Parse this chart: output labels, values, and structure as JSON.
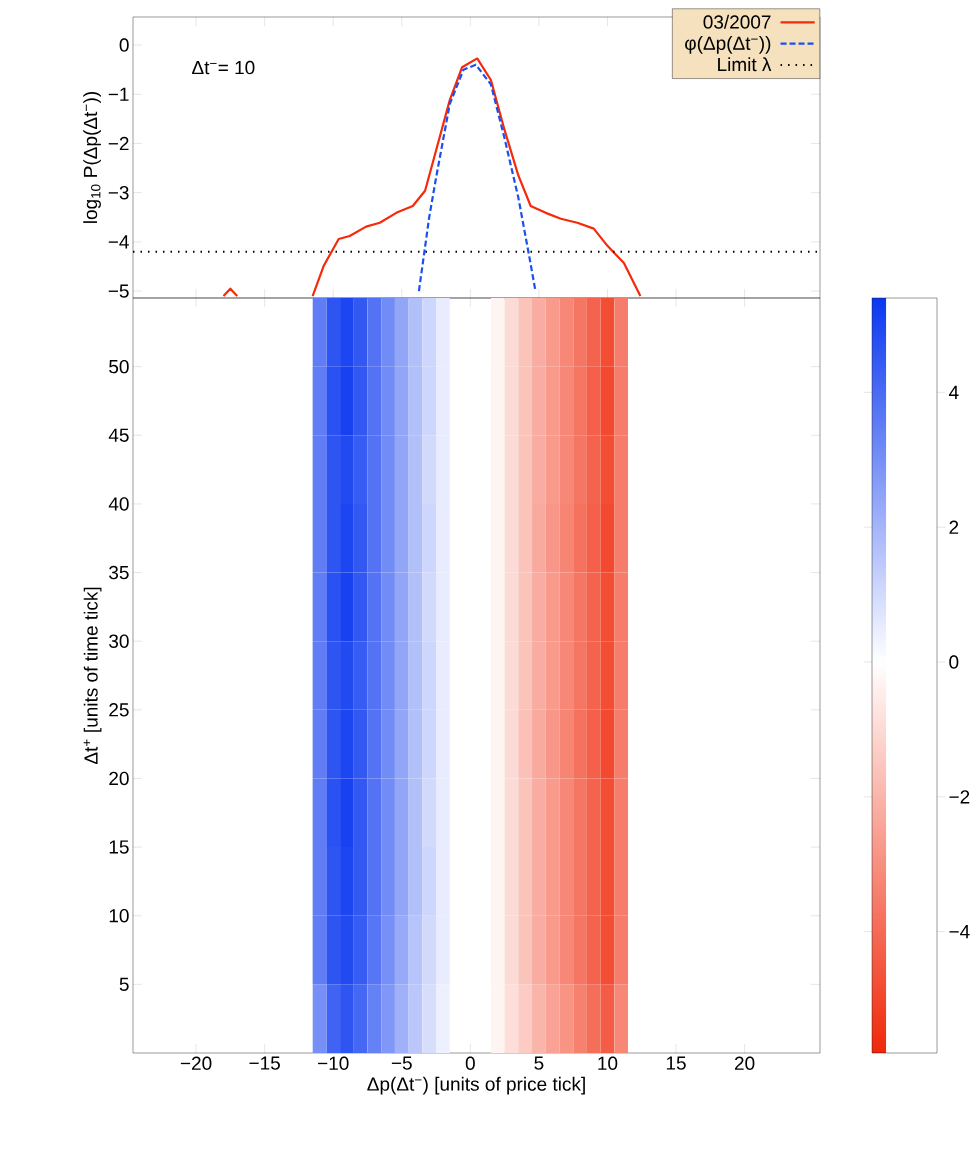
{
  "chart_data": [
    {
      "type": "line",
      "ylabel": "log$_{10}$ P(Δp(Δt$^{−}$))",
      "annotations": [
        "Δt$^{−}$= 10"
      ],
      "xlim": [
        -24.6,
        25.5
      ],
      "ylim": [
        -5.14,
        0.57
      ],
      "xticks": [
        {
          "value": -20,
          "label": null
        },
        {
          "value": -15,
          "label": null
        },
        {
          "value": -10,
          "label": null
        },
        {
          "value": -5,
          "label": null
        },
        {
          "value": 0,
          "label": null
        },
        {
          "value": 5,
          "label": null
        },
        {
          "value": 10,
          "label": null
        },
        {
          "value": 15,
          "label": null
        },
        {
          "value": 20,
          "label": null
        }
      ],
      "yticks": [
        {
          "value": -5,
          "label": "−5"
        },
        {
          "value": -4,
          "label": "−4"
        },
        {
          "value": -3,
          "label": "−3"
        },
        {
          "value": -2,
          "label": "−2"
        },
        {
          "value": -1,
          "label": "−1"
        },
        {
          "value": 0,
          "label": "0"
        }
      ],
      "tick_labels": "y",
      "legend": "top right",
      "series": [
        {
          "name": "03/2007",
          "color": "#f52a0a",
          "line_style": "solid",
          "x": [
            -18.0,
            -17.5,
            -17.0,
            -14,
            -11.5,
            -10.7,
            -9.6,
            -8.8,
            -7.6,
            -6.6,
            -5.4,
            -4.2,
            -3.3,
            -2.4,
            -1.5,
            -0.6,
            0.5,
            1.5,
            2.5,
            3.5,
            4.4,
            5.5,
            6.6,
            7.8,
            9.0,
            10.0,
            11.2,
            12.4
          ],
          "values": [
            -5.1,
            -4.95,
            -5.1,
            null,
            -5.1,
            -4.49,
            -3.94,
            -3.88,
            -3.69,
            -3.61,
            -3.41,
            -3.27,
            -2.96,
            -2.04,
            -1.12,
            -0.45,
            -0.27,
            -0.71,
            -1.73,
            -2.65,
            -3.27,
            -3.41,
            -3.53,
            -3.61,
            -3.73,
            -4.08,
            -4.43,
            -5.1
          ]
        },
        {
          "name": "φ(Δp(Δt$^{−}$))",
          "color": "#1a4ff0",
          "line_style": "dashed",
          "x": [
            -3.75,
            -3.0,
            -2.5,
            -1.5,
            -0.5,
            0.4,
            1.5,
            2.5,
            3.5,
            4.3,
            4.75
          ],
          "values": [
            -5.0,
            -3.5,
            -2.7,
            -1.2,
            -0.5,
            -0.4,
            -0.8,
            -1.9,
            -3.1,
            -4.3,
            -5.0
          ]
        }
      ],
      "ref_lines": [
        {
          "axis": "y",
          "value": -4.2,
          "label": "Limit λ",
          "color": "#000000",
          "line_style": "dotted"
        }
      ]
    },
    {
      "type": "heatmap",
      "xlabel": "Δp(Δt$^{−}$) [units of price tick]",
      "ylabel": "Δt$^{+}$ [units of time tick]",
      "x": [
        -11,
        -10,
        -9,
        -8,
        -7,
        -6,
        -5,
        -4,
        -3,
        -2,
        -1,
        0,
        1,
        2,
        3,
        4,
        5,
        6,
        7,
        8,
        9,
        10,
        11
      ],
      "y": [
        52.5,
        47.5,
        42.5,
        37.5,
        32.5,
        27.5,
        22.5,
        17.5,
        12.5,
        7.5,
        2.5
      ],
      "xlim": [
        -24.6,
        25.5
      ],
      "ylim": [
        0,
        55
      ],
      "xticks": [
        {
          "value": -20,
          "label": "−20"
        },
        {
          "value": -15,
          "label": "−15"
        },
        {
          "value": -10,
          "label": "−10"
        },
        {
          "value": -5,
          "label": "−5"
        },
        {
          "value": 0,
          "label": "0"
        },
        {
          "value": 5,
          "label": "5"
        },
        {
          "value": 10,
          "label": "10"
        },
        {
          "value": 15,
          "label": "15"
        },
        {
          "value": 20,
          "label": "20"
        }
      ],
      "yticks": [
        {
          "value": 5,
          "label": "5"
        },
        {
          "value": 10,
          "label": "10"
        },
        {
          "value": 15,
          "label": "15"
        },
        {
          "value": 20,
          "label": "20"
        },
        {
          "value": 25,
          "label": "25"
        },
        {
          "value": 30,
          "label": "30"
        },
        {
          "value": 35,
          "label": "35"
        },
        {
          "value": 40,
          "label": "40"
        },
        {
          "value": 45,
          "label": "45"
        },
        {
          "value": 50,
          "label": "50"
        }
      ],
      "cells": [
        [
          3.5,
          4.6,
          5.0,
          4.5,
          3.8,
          3.1,
          2.4,
          1.7,
          1.1,
          0.5,
          null,
          null,
          null,
          -0.3,
          -1.0,
          -1.6,
          -2.2,
          -2.7,
          -3.2,
          -3.7,
          -4.2,
          -4.8,
          -3.5
        ],
        [
          3.5,
          4.7,
          5.1,
          4.5,
          3.8,
          3.1,
          2.4,
          1.7,
          1.1,
          0.5,
          null,
          null,
          null,
          -0.3,
          -1.0,
          -1.6,
          -2.2,
          -2.7,
          -3.2,
          -3.7,
          -4.3,
          -4.9,
          -3.5
        ],
        [
          3.5,
          4.6,
          4.9,
          4.4,
          3.8,
          3.1,
          2.4,
          1.7,
          1.0,
          0.5,
          null,
          null,
          null,
          -0.3,
          -1.0,
          -1.6,
          -2.2,
          -2.7,
          -3.2,
          -3.7,
          -4.2,
          -4.8,
          -3.5
        ],
        [
          3.5,
          4.6,
          5.0,
          4.5,
          3.8,
          3.1,
          2.4,
          1.7,
          1.1,
          0.5,
          null,
          null,
          null,
          -0.3,
          -1.0,
          -1.6,
          -2.3,
          -2.8,
          -3.3,
          -3.8,
          -4.3,
          -4.9,
          -3.5
        ],
        [
          3.5,
          4.7,
          5.1,
          4.5,
          3.8,
          3.1,
          2.4,
          1.7,
          1.0,
          0.5,
          null,
          null,
          null,
          -0.3,
          -1.0,
          -1.6,
          -2.2,
          -2.7,
          -3.2,
          -3.7,
          -4.2,
          -4.8,
          -3.5
        ],
        [
          3.5,
          4.6,
          4.9,
          4.4,
          3.8,
          3.1,
          2.4,
          1.7,
          1.1,
          0.5,
          null,
          null,
          null,
          -0.3,
          -1.0,
          -1.6,
          -2.2,
          -2.7,
          -3.2,
          -3.7,
          -4.2,
          -4.8,
          -3.5
        ],
        [
          3.5,
          4.6,
          5.0,
          4.5,
          3.8,
          3.1,
          2.4,
          1.7,
          1.1,
          0.5,
          null,
          null,
          null,
          -0.3,
          -1.0,
          -1.7,
          -2.3,
          -2.8,
          -3.3,
          -3.8,
          -4.3,
          -4.9,
          -3.5
        ],
        [
          3.5,
          4.7,
          5.1,
          4.5,
          3.8,
          3.1,
          2.4,
          1.7,
          1.0,
          0.5,
          null,
          null,
          null,
          -0.3,
          -1.0,
          -1.6,
          -2.2,
          -2.7,
          -3.2,
          -3.7,
          -4.2,
          -4.8,
          -3.5
        ],
        [
          3.5,
          4.6,
          5.0,
          4.5,
          3.8,
          3.1,
          2.4,
          1.7,
          1.1,
          0.5,
          null,
          null,
          null,
          -0.3,
          -1.0,
          -1.6,
          -2.2,
          -2.7,
          -3.2,
          -3.7,
          -4.2,
          -4.8,
          -3.5
        ],
        [
          3.5,
          4.6,
          4.9,
          4.4,
          3.7,
          3.0,
          2.3,
          1.6,
          1.0,
          0.5,
          null,
          null,
          null,
          -0.3,
          -1.0,
          -1.6,
          -2.2,
          -2.7,
          -3.2,
          -3.7,
          -4.2,
          -4.8,
          -3.5
        ],
        [
          3.0,
          4.2,
          4.6,
          4.1,
          3.4,
          2.8,
          2.1,
          1.5,
          0.9,
          0.4,
          null,
          null,
          null,
          -0.3,
          -0.9,
          -1.4,
          -2.0,
          -2.5,
          -2.9,
          -3.4,
          -3.9,
          -4.4,
          -3.2
        ]
      ],
      "clim": [
        -5.8,
        5.4
      ],
      "cticks": [
        {
          "value": -4,
          "label": "−4"
        },
        {
          "value": -2,
          "label": "−2"
        },
        {
          "value": 0,
          "label": "0"
        },
        {
          "value": 2,
          "label": "2"
        },
        {
          "value": 4,
          "label": "4"
        }
      ]
    }
  ]
}
